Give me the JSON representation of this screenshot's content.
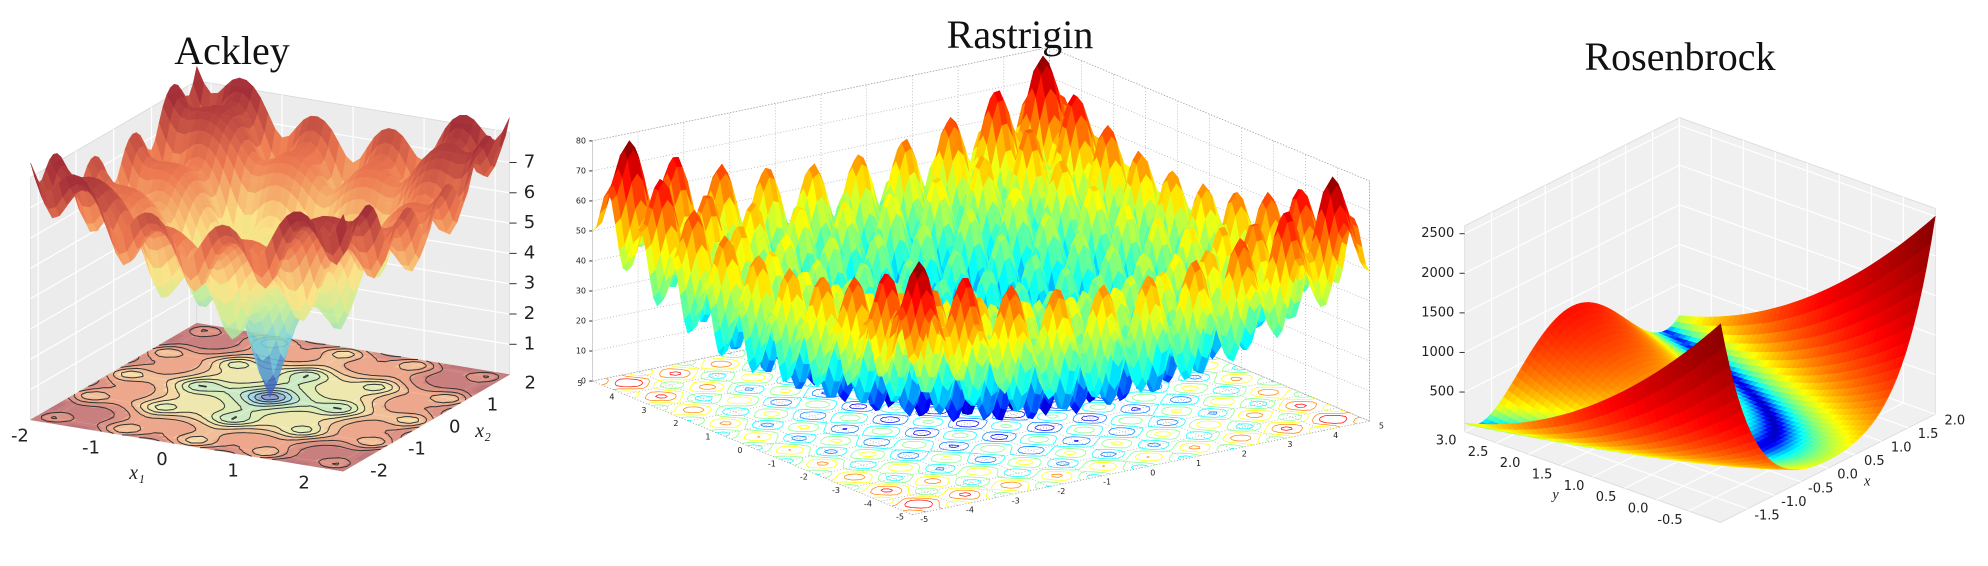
{
  "chart_data": [
    {
      "type": "surface",
      "function": "ackley",
      "title": "Ackley",
      "xlabel": "x₁",
      "ylabel": "x₂",
      "xlim": [
        -2.2,
        2.2
      ],
      "ylim": [
        -2.2,
        2.2
      ],
      "zlim": [
        0,
        8
      ],
      "xticks": [
        -2,
        -1,
        0,
        1,
        2
      ],
      "yticks": [
        -2,
        -1,
        0,
        1,
        2
      ],
      "zticks": [
        1,
        2,
        3,
        4,
        5,
        6,
        7
      ],
      "colormap": "rdylbu",
      "floor_contour": "filled",
      "pane_color": "#ececec",
      "grid": true
    },
    {
      "type": "surface",
      "function": "rastrigin",
      "title": "Rastrigin",
      "xlim": [
        -5,
        5
      ],
      "ylim": [
        -5,
        5
      ],
      "zlim": [
        0,
        80
      ],
      "xticks": [
        -5,
        -4,
        -3,
        -2,
        -1,
        0,
        1,
        2,
        3,
        4,
        5
      ],
      "yticks": [
        -5,
        -4,
        -3,
        -2,
        -1,
        0,
        1,
        2,
        3,
        4,
        5
      ],
      "zticks": [
        0,
        10,
        20,
        30,
        40,
        50,
        60,
        70,
        80
      ],
      "colormap": "jet",
      "floor_contour": "lines",
      "pane_color": "#ffffff",
      "grid": true
    },
    {
      "type": "surface",
      "function": "rosenbrock",
      "title": "Rosenbrock",
      "xlabel": "x",
      "ylabel": "y",
      "xlim": [
        -2,
        2
      ],
      "ylim": [
        -1,
        3
      ],
      "zlim": [
        0,
        2600
      ],
      "xticks": [
        -1.5,
        {
          "value": -1,
          "label": "-1.0"
        },
        -0.5,
        {
          "value": 0,
          "label": "0.0"
        },
        0.5,
        {
          "value": 1,
          "label": "1.0"
        },
        1.5,
        {
          "value": 2,
          "label": "2.0"
        }
      ],
      "yticks": [
        -0.5,
        {
          "value": 0,
          "label": "0.0"
        },
        0.5,
        {
          "value": 1,
          "label": "1.0"
        },
        1.5,
        {
          "value": 2,
          "label": "2.0"
        },
        2.5,
        {
          "value": 3,
          "label": "3.0"
        }
      ],
      "zticks": [
        500,
        1000,
        1500,
        2000,
        2500
      ],
      "colormap": "jet",
      "color_scale": "log",
      "pane_color": "#f0f0f0",
      "grid": true
    }
  ]
}
